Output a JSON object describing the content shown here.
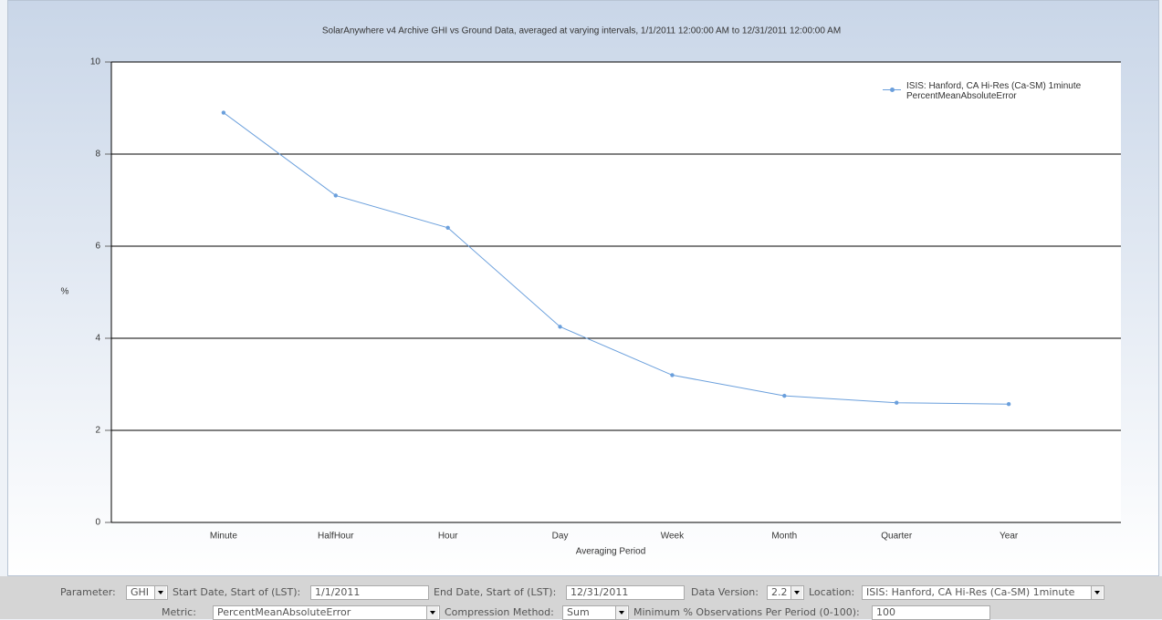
{
  "chart_data": {
    "type": "line",
    "title": "SolarAnywhere v4 Archive GHI vs Ground Data, averaged at varying intervals, 1/1/2011 12:00:00 AM to 12/31/2011 12:00:00 AM",
    "xlabel": "Averaging Period",
    "ylabel": "%",
    "categories": [
      "Minute",
      "HalfHour",
      "Hour",
      "Day",
      "Week",
      "Month",
      "Quarter",
      "Year"
    ],
    "series": [
      {
        "name": "ISIS: Hanford, CA Hi-Res (Ca-SM) 1minute PercentMeanAbsoluteError",
        "color": "#6a9fdc",
        "values": [
          8.9,
          7.1,
          6.4,
          4.25,
          3.2,
          2.75,
          2.6,
          2.57
        ]
      }
    ],
    "ylim": [
      0,
      10
    ],
    "yticks": [
      0,
      2,
      4,
      6,
      8,
      10
    ],
    "grid": true,
    "legend": "top-right"
  },
  "form": {
    "parameter": {
      "label": "Parameter:",
      "value": "GHI"
    },
    "start_date": {
      "label": "Start Date, Start of (LST):",
      "value": "1/1/2011"
    },
    "end_date": {
      "label": "End Date, Start of (LST):",
      "value": "12/31/2011"
    },
    "data_version": {
      "label": "Data Version:",
      "value": "2.2"
    },
    "location": {
      "label": "Location:",
      "value": "ISIS: Hanford, CA Hi-Res (Ca-SM) 1minute"
    },
    "metric": {
      "label": "Metric:",
      "value": "PercentMeanAbsoluteError"
    },
    "compression": {
      "label": "Compression Method:",
      "value": "Sum"
    },
    "min_obs": {
      "label": "Minimum % Observations Per Period (0-100):",
      "value": "100"
    }
  }
}
